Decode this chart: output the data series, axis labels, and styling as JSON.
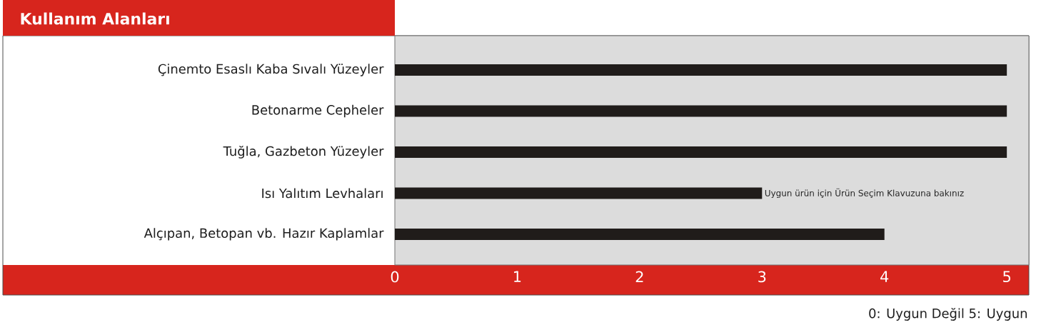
{
  "chart_data": {
    "type": "bar",
    "orientation": "horizontal",
    "title": "Kullanım Alanları",
    "categories": [
      "Çinemto Esaslı Kaba Sıvalı Yüzeyler",
      "Betonarme Cepheler",
      "Tuğla, Gazbeton Yüzeyler",
      "Isı Yalıtım Levhaları",
      "Alçıpan, Betopan vb. Hazır Kaplamlar"
    ],
    "values": [
      5,
      5,
      5,
      3,
      4
    ],
    "color": "#201c1a",
    "xlim": [
      0,
      5.18
    ],
    "xticks": [
      0,
      1,
      2,
      3,
      4,
      5
    ],
    "annotations": [
      {
        "text": "Uygun ürün için Ürün Seçim Klavuzuna bakınız",
        "x": 3,
        "y": "Isı Yalıtım Levhaları"
      },
      "0: Uygun Değil  5: Uygun"
    ]
  }
}
